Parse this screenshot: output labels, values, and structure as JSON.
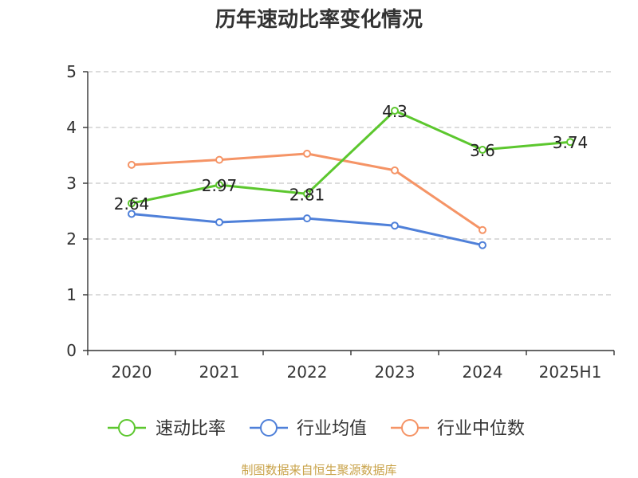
{
  "title": "历年速动比率变化情况",
  "source": "制图数据来自恒生聚源数据库",
  "chart_data": {
    "type": "line",
    "categories": [
      "2020",
      "2021",
      "2022",
      "2023",
      "2024",
      "2025H1"
    ],
    "ylim": [
      0,
      5
    ],
    "yticks": [
      0,
      1,
      2,
      3,
      4,
      5
    ],
    "grid": true,
    "legend_position": "bottom",
    "series": [
      {
        "name": "速动比率",
        "color": "#5cc72e",
        "values": [
          2.64,
          2.97,
          2.81,
          4.3,
          3.6,
          3.74
        ],
        "labels": [
          "2.64",
          "2.97",
          "2.81",
          "4.3",
          "3.6",
          "3.74"
        ]
      },
      {
        "name": "行业均值",
        "color": "#4f80d9",
        "values": [
          2.45,
          2.3,
          2.37,
          2.24,
          1.89,
          null
        ]
      },
      {
        "name": "行业中位数",
        "color": "#f59466",
        "values": [
          3.33,
          3.42,
          3.53,
          3.23,
          2.16,
          null
        ]
      }
    ]
  }
}
